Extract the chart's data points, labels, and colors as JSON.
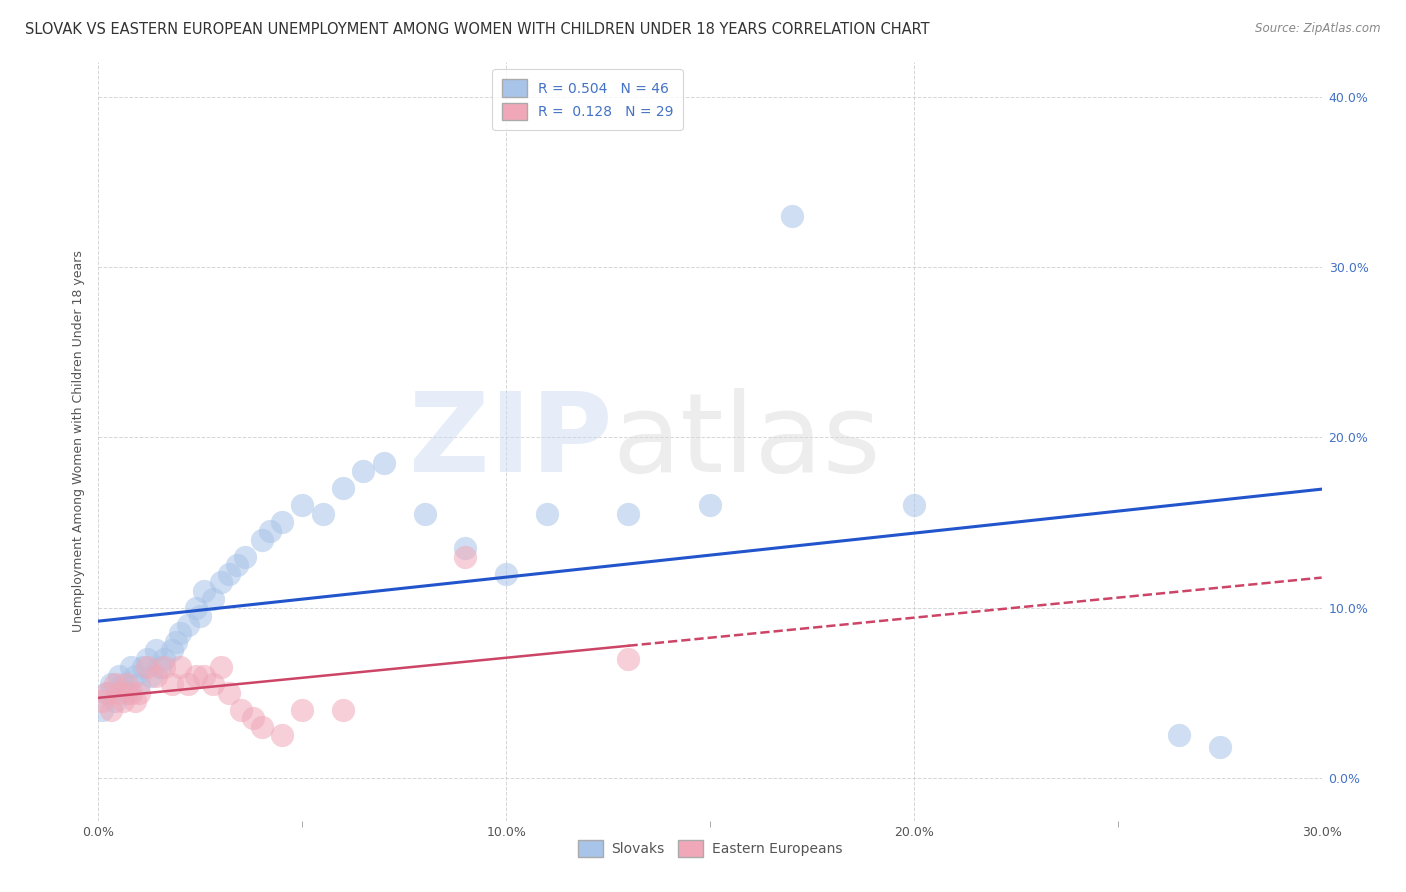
{
  "title": "SLOVAK VS EASTERN EUROPEAN UNEMPLOYMENT AMONG WOMEN WITH CHILDREN UNDER 18 YEARS CORRELATION CHART",
  "source": "Source: ZipAtlas.com",
  "ylabel": "Unemployment Among Women with Children Under 18 years",
  "xlim": [
    0.0,
    0.3
  ],
  "ylim": [
    -0.025,
    0.42
  ],
  "slovak_R": 0.504,
  "slovak_N": 46,
  "eastern_R": 0.128,
  "eastern_N": 29,
  "slovak_color": "#a8c4e8",
  "eastern_color": "#f0a8b8",
  "slovak_line_color": "#2255cc",
  "eastern_line_color": "#cc4466",
  "background_color": "#ffffff",
  "grid_color": "#cccccc",
  "slovak_scatter_x": [
    0.001,
    0.002,
    0.003,
    0.004,
    0.005,
    0.006,
    0.007,
    0.008,
    0.009,
    0.01,
    0.011,
    0.012,
    0.013,
    0.014,
    0.015,
    0.016,
    0.018,
    0.019,
    0.02,
    0.022,
    0.024,
    0.025,
    0.026,
    0.028,
    0.03,
    0.032,
    0.034,
    0.036,
    0.04,
    0.042,
    0.045,
    0.05,
    0.055,
    0.06,
    0.065,
    0.07,
    0.08,
    0.09,
    0.1,
    0.11,
    0.13,
    0.15,
    0.17,
    0.2,
    0.265,
    0.275
  ],
  "slovak_scatter_y": [
    0.04,
    0.05,
    0.055,
    0.045,
    0.06,
    0.055,
    0.05,
    0.065,
    0.06,
    0.055,
    0.065,
    0.07,
    0.06,
    0.075,
    0.065,
    0.07,
    0.075,
    0.08,
    0.085,
    0.09,
    0.1,
    0.095,
    0.11,
    0.105,
    0.115,
    0.12,
    0.125,
    0.13,
    0.14,
    0.145,
    0.15,
    0.16,
    0.155,
    0.17,
    0.18,
    0.185,
    0.155,
    0.135,
    0.12,
    0.155,
    0.155,
    0.16,
    0.33,
    0.16,
    0.025,
    0.018
  ],
  "eastern_scatter_x": [
    0.001,
    0.002,
    0.003,
    0.004,
    0.005,
    0.006,
    0.007,
    0.008,
    0.009,
    0.01,
    0.012,
    0.014,
    0.016,
    0.018,
    0.02,
    0.022,
    0.024,
    0.026,
    0.028,
    0.03,
    0.032,
    0.035,
    0.038,
    0.04,
    0.045,
    0.05,
    0.06,
    0.09,
    0.13
  ],
  "eastern_scatter_y": [
    0.045,
    0.05,
    0.04,
    0.055,
    0.05,
    0.045,
    0.055,
    0.05,
    0.045,
    0.05,
    0.065,
    0.06,
    0.065,
    0.055,
    0.065,
    0.055,
    0.06,
    0.06,
    0.055,
    0.065,
    0.05,
    0.04,
    0.035,
    0.03,
    0.025,
    0.04,
    0.04,
    0.13,
    0.07
  ],
  "title_fontsize": 10.5,
  "axis_fontsize": 9,
  "tick_fontsize": 9,
  "legend_fontsize": 10
}
